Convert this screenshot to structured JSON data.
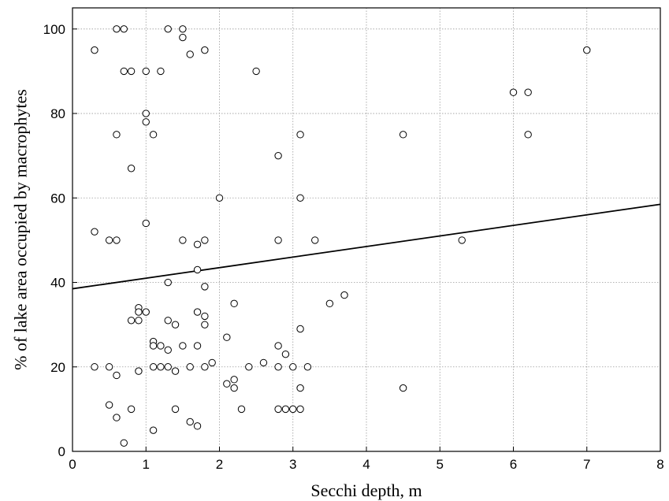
{
  "chart_data": {
    "type": "scatter",
    "title": "",
    "xlabel": "Secchi depth, m",
    "ylabel": "% of lake area occupied by macrophytes",
    "xlim": [
      0,
      8
    ],
    "ylim": [
      0,
      105
    ],
    "x_ticks": [
      0,
      1,
      2,
      3,
      4,
      5,
      6,
      7,
      8
    ],
    "y_ticks": [
      0,
      20,
      40,
      60,
      80,
      100
    ],
    "grid": true,
    "legend": "none",
    "marker": "open-circle",
    "colors": {
      "axis": "#000000",
      "grid": "#9a9a9a",
      "marker": "#000000",
      "fit_line": "#000000"
    },
    "points": [
      [
        0.3,
        95
      ],
      [
        0.6,
        100
      ],
      [
        0.7,
        100
      ],
      [
        0.7,
        90
      ],
      [
        0.8,
        90
      ],
      [
        1.0,
        90
      ],
      [
        1.2,
        90
      ],
      [
        1.3,
        100
      ],
      [
        1.5,
        100
      ],
      [
        1.5,
        98
      ],
      [
        1.6,
        94
      ],
      [
        1.8,
        95
      ],
      [
        2.5,
        90
      ],
      [
        7.0,
        95
      ],
      [
        6.0,
        85
      ],
      [
        6.2,
        85
      ],
      [
        6.2,
        75
      ],
      [
        4.5,
        75
      ],
      [
        3.1,
        75
      ],
      [
        1.0,
        80
      ],
      [
        1.0,
        78
      ],
      [
        0.6,
        75
      ],
      [
        1.1,
        75
      ],
      [
        0.8,
        67
      ],
      [
        2.8,
        70
      ],
      [
        2.0,
        60
      ],
      [
        3.1,
        60
      ],
      [
        1.0,
        54
      ],
      [
        0.3,
        52
      ],
      [
        0.5,
        50
      ],
      [
        0.6,
        50
      ],
      [
        1.5,
        50
      ],
      [
        1.8,
        50
      ],
      [
        1.7,
        49
      ],
      [
        2.8,
        50
      ],
      [
        3.3,
        50
      ],
      [
        5.3,
        50
      ],
      [
        1.7,
        43
      ],
      [
        1.3,
        40
      ],
      [
        1.8,
        39
      ],
      [
        2.2,
        35
      ],
      [
        3.5,
        35
      ],
      [
        3.7,
        37
      ],
      [
        0.9,
        34
      ],
      [
        0.9,
        33
      ],
      [
        1.0,
        33
      ],
      [
        1.7,
        33
      ],
      [
        1.8,
        32
      ],
      [
        0.8,
        31
      ],
      [
        0.9,
        31
      ],
      [
        1.3,
        31
      ],
      [
        1.4,
        30
      ],
      [
        1.8,
        30
      ],
      [
        3.1,
        29
      ],
      [
        2.1,
        27
      ],
      [
        1.1,
        26
      ],
      [
        1.1,
        25
      ],
      [
        1.2,
        25
      ],
      [
        1.5,
        25
      ],
      [
        1.7,
        25
      ],
      [
        2.8,
        25
      ],
      [
        1.3,
        24
      ],
      [
        2.9,
        23
      ],
      [
        1.9,
        21
      ],
      [
        2.6,
        21
      ],
      [
        0.3,
        20
      ],
      [
        0.5,
        20
      ],
      [
        1.1,
        20
      ],
      [
        1.2,
        20
      ],
      [
        1.3,
        20
      ],
      [
        1.6,
        20
      ],
      [
        1.8,
        20
      ],
      [
        2.4,
        20
      ],
      [
        2.8,
        20
      ],
      [
        3.0,
        20
      ],
      [
        3.2,
        20
      ],
      [
        0.9,
        19
      ],
      [
        1.4,
        19
      ],
      [
        0.6,
        18
      ],
      [
        2.2,
        17
      ],
      [
        2.1,
        16
      ],
      [
        2.2,
        15
      ],
      [
        3.1,
        15
      ],
      [
        4.5,
        15
      ],
      [
        0.5,
        11
      ],
      [
        0.8,
        10
      ],
      [
        1.4,
        10
      ],
      [
        2.3,
        10
      ],
      [
        2.8,
        10
      ],
      [
        2.9,
        10
      ],
      [
        3.0,
        10
      ],
      [
        3.1,
        10
      ],
      [
        0.6,
        8
      ],
      [
        1.6,
        7
      ],
      [
        1.7,
        6
      ],
      [
        1.1,
        5
      ],
      [
        0.7,
        2
      ]
    ],
    "fit_line": {
      "x": [
        0,
        8
      ],
      "y": [
        38.5,
        58.5
      ]
    }
  }
}
